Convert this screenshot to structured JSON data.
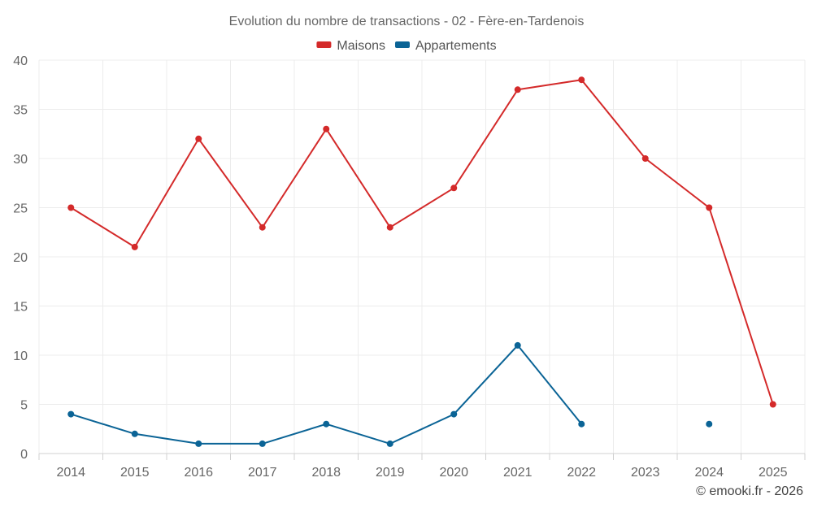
{
  "chart_data": {
    "type": "line",
    "title": "Evolution du nombre de transactions - 02 - Fère-en-Tardenois",
    "xlabel": "",
    "ylabel": "",
    "categories": [
      "2014",
      "2015",
      "2016",
      "2017",
      "2018",
      "2019",
      "2020",
      "2021",
      "2022",
      "2023",
      "2024",
      "2025"
    ],
    "ylim": [
      0,
      40
    ],
    "yticks": [
      0,
      5,
      10,
      15,
      20,
      25,
      30,
      35,
      40
    ],
    "grid": true,
    "legend_position": "top-center",
    "series": [
      {
        "name": "Maisons",
        "color": "#d42a2a",
        "values": [
          25,
          21,
          32,
          23,
          33,
          23,
          27,
          37,
          38,
          30,
          25,
          5
        ]
      },
      {
        "name": "Appartements",
        "color": "#0b6496",
        "values": [
          4,
          2,
          1,
          1,
          3,
          1,
          4,
          11,
          3,
          null,
          3,
          null
        ]
      }
    ]
  },
  "footer": "© emooki.fr - 2026"
}
